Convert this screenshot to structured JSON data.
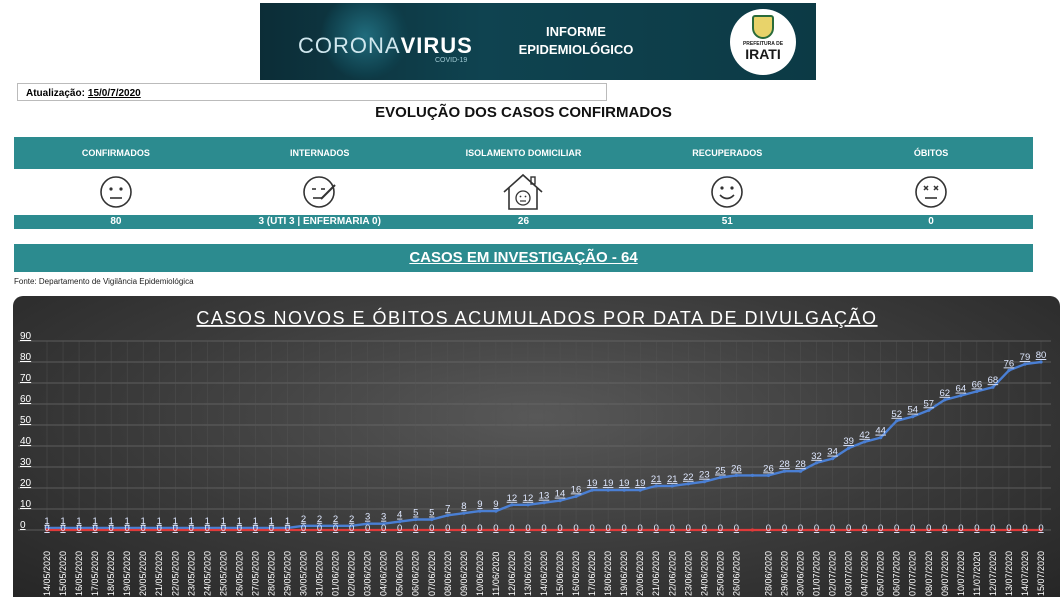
{
  "banner": {
    "brand_light": "CORONA",
    "brand_bold": "VIRUS",
    "brand_sub": "COVID-19",
    "informe_line1": "INFORME",
    "informe_line2": "EPIDEMIOLÓGICO",
    "seal_prefix": "PREFEITURA DE",
    "seal_city": "IRATI"
  },
  "update": {
    "label": "Atualização:",
    "date": "15/0/7/2020"
  },
  "main_title": "EVOLUÇÃO DOS CASOS CONFIRMADOS",
  "stats": {
    "headers": [
      "CONFIRMADOS",
      "INTERNADOS",
      "ISOLAMENTO DOMICILIAR",
      "RECUPERADOS",
      "ÓBITOS"
    ],
    "values": [
      "80",
      "3 (UTI 3  |  ENFERMARIA 0)",
      "26",
      "51",
      "0"
    ],
    "icons": [
      "neutral-face-icon",
      "sick-face-icon",
      "house-face-icon",
      "smiling-face-icon",
      "dead-face-icon"
    ]
  },
  "investigation": "CASOS EM INVESTIGAÇÃO - 64",
  "source": "Fonte: Departamento de Vigilância Epidemiológica",
  "colors": {
    "teal": "#2c8b8f",
    "cases_line": "#4a7fd4",
    "deaths_line": "#e03a3a"
  },
  "chart_data": {
    "type": "line",
    "title": "CASOS NOVOS E ÓBITOS ACUMULADOS POR DATA DE DIVULGAÇÃO",
    "xlabel": "",
    "ylabel": "",
    "ylim": [
      0,
      90
    ],
    "yticks": [
      0,
      10,
      20,
      30,
      40,
      50,
      60,
      70,
      80,
      90
    ],
    "grid": true,
    "categories": [
      "14/05/2020",
      "15/05/2020",
      "16/05/2020",
      "17/05/2020",
      "18/05/2020",
      "19/05/2020",
      "20/05/2020",
      "21/05/2020",
      "22/05/2020",
      "23/05/2020",
      "24/05/2020",
      "25/05/2020",
      "26/05/2020",
      "27/05/2020",
      "28/05/2020",
      "29/05/2020",
      "30/05/2020",
      "31/05/2020",
      "01/06/2020",
      "02/06/2020",
      "03/06/2020",
      "04/06/2020",
      "05/06/2020",
      "06/06/2020",
      "07/06/2020",
      "08/06/2020",
      "09/06/2020",
      "10/06/2020",
      "11/06/2020",
      "12/06/2020",
      "13/06/2020",
      "14/06/2020",
      "15/06/2020",
      "16/06/2020",
      "17/06/2020",
      "18/06/2020",
      "19/06/2020",
      "20/06/2020",
      "21/06/2020",
      "22/06/2020",
      "23/06/2020",
      "24/06/2020",
      "25/06/2020",
      "26/06/2020",
      "27/06/2020",
      "28/06/2020",
      "29/06/2020",
      "30/06/2020",
      "01/07/2020",
      "02/07/2020",
      "03/07/2020",
      "04/07/2020",
      "05/07/2020",
      "06/07/2020",
      "07/07/2020",
      "08/07/2020",
      "09/07/2020",
      "10/07/2020",
      "11/07/2020",
      "12/07/2020",
      "13/07/2020",
      "14/07/2020",
      "15/07/2020"
    ],
    "tick_labels": [
      "14/05/2020",
      "15/05/2020",
      "16/05/2020",
      "17/05/2020",
      "18/05/2020",
      "19/05/2020",
      "20/05/2020",
      "21/05/2020",
      "22/05/2020",
      "23/05/2020",
      "24/05/2020",
      "25/05/2020",
      "26/05/2020",
      "27/05/2020",
      "28/05/2020",
      "29/05/2020",
      "30/05/2020",
      "31/05/2020",
      "01/06/2020",
      "02/06/2020",
      "03/06/2020",
      "04/06/2020",
      "05/06/2020",
      "06/06/2020",
      "07/06/2020",
      "08/06/2020",
      "09/06/2020",
      "10/06/2020",
      "11/06/2020",
      "12/06/2020",
      "13/06/2020",
      "14/06/2020",
      "15/06/2020",
      "16/06/2020",
      "17/06/2020",
      "18/06/2020",
      "19/06/2020",
      "20/06/2020",
      "21/06/2020",
      "22/06/2020",
      "23/06/2020",
      "24/06/2020",
      "25/06/2020",
      "26/06/2020",
      "",
      "28/06/2020",
      "29/06/2020",
      "30/06/2020",
      "01/07/2020",
      "02/07/2020",
      "03/07/2020",
      "04/07/2020",
      "05/07/2020",
      "06/07/2020",
      "07/07/2020",
      "08/07/2020",
      "09/07/2020",
      "10/07/2020",
      "11/07/2020",
      "12/07/2020",
      "13/07/2020",
      "14/07/2020",
      "15/07/2020"
    ],
    "series": [
      {
        "values": [
          1,
          1,
          1,
          1,
          1,
          1,
          1,
          1,
          1,
          1,
          1,
          1,
          1,
          1,
          1,
          1,
          2,
          2,
          2,
          2,
          3,
          3,
          4,
          5,
          5,
          7,
          8,
          9,
          9,
          12,
          12,
          13,
          14,
          16,
          19,
          19,
          19,
          19,
          21,
          21,
          22,
          23,
          25,
          26,
          26,
          26,
          28,
          28,
          32,
          34,
          39,
          42,
          44,
          52,
          54,
          57,
          62,
          64,
          66,
          68,
          76,
          79,
          80
        ],
        "labels": [
          "1",
          "1",
          "1",
          "1",
          "1",
          "1",
          "1",
          "1",
          "1",
          "1",
          "1",
          "1",
          "1",
          "1",
          "1",
          "1",
          "2",
          "2",
          "2",
          "2",
          "3",
          "3",
          "4",
          "5",
          "5",
          "7",
          "8",
          "9",
          "9",
          "12",
          "12",
          "13",
          "14",
          "16",
          "19",
          "19",
          "19",
          "19",
          "21",
          "21",
          "22",
          "23",
          "25",
          "26",
          "",
          "26",
          "28",
          "28",
          "32",
          "34",
          "39",
          "42",
          "44",
          "52",
          "54",
          "57",
          "62",
          "64",
          "66",
          "68",
          "76",
          "79",
          "80"
        ]
      },
      {
        "values": [
          0,
          0,
          0,
          0,
          0,
          0,
          0,
          0,
          0,
          0,
          0,
          0,
          0,
          0,
          0,
          0,
          0,
          0,
          0,
          0,
          0,
          0,
          0,
          0,
          0,
          0,
          0,
          0,
          0,
          0,
          0,
          0,
          0,
          0,
          0,
          0,
          0,
          0,
          0,
          0,
          0,
          0,
          0,
          0,
          0,
          0,
          0,
          0,
          0,
          0,
          0,
          0,
          0,
          0,
          0,
          0,
          0,
          0,
          0,
          0,
          0,
          0,
          0
        ],
        "labels": [
          "0",
          "0",
          "0",
          "0",
          "0",
          "0",
          "0",
          "0",
          "0",
          "0",
          "0",
          "0",
          "0",
          "0",
          "0",
          "0",
          "0",
          "0",
          "0",
          "0",
          "0",
          "0",
          "0",
          "0",
          "0",
          "0",
          "0",
          "0",
          "0",
          "0",
          "0",
          "0",
          "0",
          "0",
          "0",
          "0",
          "0",
          "0",
          "0",
          "0",
          "0",
          "0",
          "0",
          "0",
          "",
          "0",
          "0",
          "0",
          "0",
          "0",
          "0",
          "0",
          "0",
          "0",
          "0",
          "0",
          "0",
          "0",
          "0",
          "0",
          "0",
          "0",
          "0"
        ]
      }
    ]
  }
}
